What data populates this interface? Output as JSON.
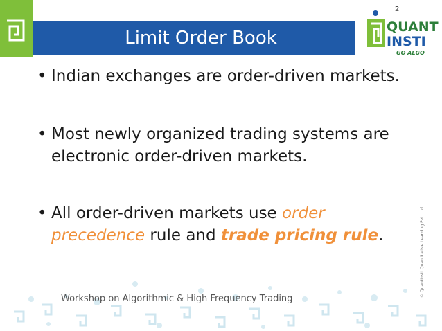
{
  "slide": {
    "page_number": "2",
    "title": "Limit Order Book",
    "bullets": {
      "b1": "Indian exchanges are order-driven markets.",
      "b2_line1": "Most newly organized trading systems are",
      "b2_line2": "electronic order-driven markets.",
      "b3_part1": "All order-driven markets use ",
      "b3_part2": "order",
      "b3_part3": "precedence",
      "b3_part4": " rule and ",
      "b3_part5": "trade pricing rule",
      "b3_part6": "."
    },
    "footer": "Workshop on Algorithmic & High Frequency Trading",
    "copyright": "© QuantInsti Quantitative Learning Pvt. Ltd.",
    "logo": {
      "line1": "QUANT",
      "line2": "INSTI",
      "tagline": "GO ALGO"
    }
  },
  "colors": {
    "title_bar": "#1f5aa8",
    "green_accent": "#7fbf3a",
    "emphasis": "#f0903a"
  },
  "icons": {
    "corner": "square-spiral-icon",
    "logo": "quantinsti-logo"
  }
}
